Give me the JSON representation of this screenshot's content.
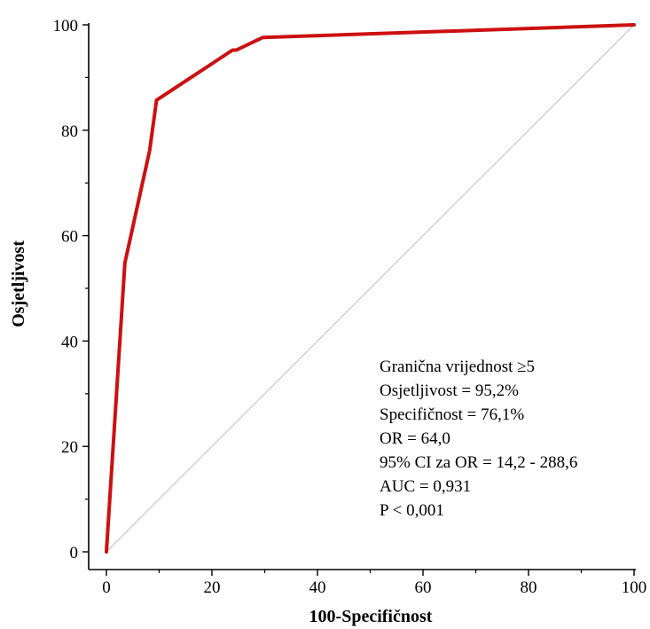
{
  "chart_data": {
    "type": "line",
    "xlabel": "100-Specifičnost",
    "ylabel": "Osjetljivost",
    "xlim": [
      0,
      100
    ],
    "ylim": [
      0,
      100
    ],
    "xticks": [
      "0",
      "20",
      "40",
      "60",
      "80",
      "100"
    ],
    "yticks": [
      "0",
      "20",
      "40",
      "60",
      "80",
      "100"
    ],
    "grid": false,
    "series": [
      {
        "color": "#cc1010",
        "x": [
          0,
          3.5,
          8.2,
          9.5,
          23.9,
          24.6,
          29.6,
          100
        ],
        "y": [
          0,
          54.8,
          76.2,
          85.7,
          95.2,
          95.2,
          97.6,
          100
        ]
      }
    ],
    "reference_line": {
      "x": [
        0,
        100
      ],
      "y": [
        0,
        100
      ],
      "color": "#bdbdbd"
    },
    "annotations": [
      "Granična vrijednost ≥5",
      "Osjetljivost = 95,2%",
      "Specifičnost = 76,1%",
      "OR = 64,0",
      "95% CI za OR = 14,2 - 288,6",
      "AUC = 0,931",
      "P < 0,001"
    ]
  }
}
